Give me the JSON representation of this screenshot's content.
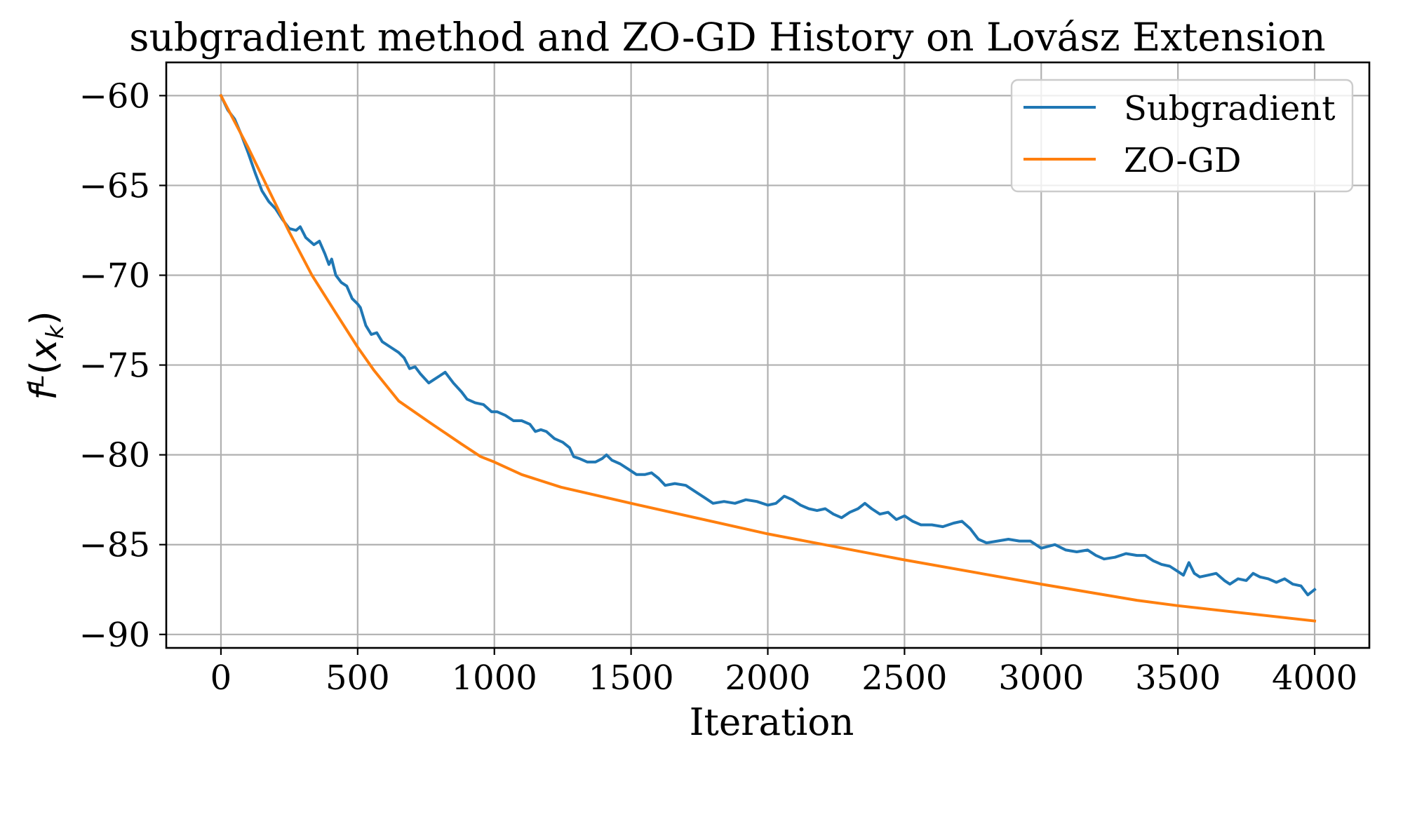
{
  "chart_data": {
    "type": "line",
    "title": "subgradient method and ZO-GD History on Lovász Extension",
    "xlabel": "Iteration",
    "ylabel": {
      "base": "f",
      "superscript": "L",
      "arg_open": "(",
      "arg_var": "x",
      "arg_subscript": "k",
      "arg_close": ")"
    },
    "xlim": [
      -200,
      4200
    ],
    "ylim": [
      -90.75,
      -58.15
    ],
    "xticks": [
      0,
      500,
      1000,
      1500,
      2000,
      2500,
      3000,
      3500,
      4000
    ],
    "xtick_labels": [
      "0",
      "500",
      "1000",
      "1500",
      "2000",
      "2500",
      "3000",
      "3500",
      "4000"
    ],
    "yticks": [
      -60,
      -65,
      -70,
      -75,
      -80,
      -85,
      -90
    ],
    "ytick_labels": [
      "−60",
      "−65",
      "−70",
      "−75",
      "−80",
      "−85",
      "−90"
    ],
    "grid": true,
    "legend": {
      "placement": "top-right"
    },
    "series": [
      {
        "name": "Subgradient",
        "color": "#1f77b4",
        "x": [
          0,
          25,
          50,
          75,
          100,
          125,
          150,
          175,
          200,
          225,
          250,
          275,
          290,
          310,
          340,
          360,
          380,
          395,
          405,
          420,
          440,
          460,
          480,
          500,
          510,
          530,
          550,
          570,
          590,
          620,
          650,
          670,
          690,
          710,
          730,
          760,
          780,
          800,
          820,
          850,
          880,
          900,
          930,
          960,
          990,
          1010,
          1040,
          1070,
          1100,
          1130,
          1150,
          1170,
          1190,
          1220,
          1250,
          1275,
          1290,
          1310,
          1340,
          1370,
          1395,
          1410,
          1430,
          1460,
          1490,
          1520,
          1550,
          1575,
          1600,
          1625,
          1660,
          1700,
          1740,
          1770,
          1800,
          1840,
          1880,
          1920,
          1960,
          2000,
          2030,
          2060,
          2090,
          2120,
          2150,
          2180,
          2210,
          2240,
          2270,
          2300,
          2330,
          2355,
          2380,
          2410,
          2440,
          2470,
          2500,
          2530,
          2560,
          2600,
          2640,
          2680,
          2710,
          2740,
          2770,
          2800,
          2840,
          2880,
          2920,
          2960,
          3000,
          3050,
          3090,
          3130,
          3170,
          3200,
          3230,
          3270,
          3310,
          3350,
          3380,
          3410,
          3440,
          3470,
          3500,
          3520,
          3540,
          3560,
          3580,
          3610,
          3640,
          3670,
          3690,
          3720,
          3750,
          3775,
          3800,
          3830,
          3860,
          3890,
          3920,
          3950,
          3975,
          4000
        ],
        "y": [
          -60,
          -60.8,
          -61.3,
          -62.2,
          -63.2,
          -64.3,
          -65.3,
          -65.9,
          -66.3,
          -66.9,
          -67.4,
          -67.5,
          -67.3,
          -67.9,
          -68.3,
          -68.1,
          -68.8,
          -69.4,
          -69.1,
          -70.0,
          -70.4,
          -70.6,
          -71.3,
          -71.6,
          -71.8,
          -72.8,
          -73.3,
          -73.2,
          -73.7,
          -74.0,
          -74.3,
          -74.6,
          -75.2,
          -75.1,
          -75.5,
          -76.0,
          -75.8,
          -75.6,
          -75.4,
          -76.0,
          -76.5,
          -76.9,
          -77.1,
          -77.2,
          -77.6,
          -77.6,
          -77.8,
          -78.1,
          -78.1,
          -78.3,
          -78.7,
          -78.6,
          -78.7,
          -79.1,
          -79.3,
          -79.6,
          -80.1,
          -80.2,
          -80.4,
          -80.4,
          -80.2,
          -80.0,
          -80.3,
          -80.5,
          -80.8,
          -81.1,
          -81.1,
          -81.0,
          -81.3,
          -81.7,
          -81.6,
          -81.7,
          -82.1,
          -82.4,
          -82.7,
          -82.6,
          -82.7,
          -82.5,
          -82.6,
          -82.8,
          -82.7,
          -82.3,
          -82.5,
          -82.8,
          -83.0,
          -83.1,
          -83.0,
          -83.3,
          -83.5,
          -83.2,
          -83.0,
          -82.7,
          -83.0,
          -83.3,
          -83.2,
          -83.6,
          -83.4,
          -83.7,
          -83.9,
          -83.9,
          -84.0,
          -83.8,
          -83.7,
          -84.1,
          -84.7,
          -84.9,
          -84.8,
          -84.7,
          -84.8,
          -84.8,
          -85.2,
          -85.0,
          -85.3,
          -85.4,
          -85.3,
          -85.6,
          -85.8,
          -85.7,
          -85.5,
          -85.6,
          -85.6,
          -85.9,
          -86.1,
          -86.2,
          -86.5,
          -86.7,
          -86.0,
          -86.6,
          -86.8,
          -86.7,
          -86.6,
          -87.0,
          -87.2,
          -86.9,
          -87.0,
          -86.6,
          -86.8,
          -86.9,
          -87.1,
          -86.9,
          -87.2,
          -87.3,
          -87.8,
          -87.5
        ]
      },
      {
        "name": "ZO-GD",
        "color": "#ff7f0e",
        "x": [
          0,
          100,
          167,
          250,
          333,
          420,
          500,
          560,
          650,
          764,
          880,
          950,
          1000,
          1100,
          1244,
          1500,
          2000,
          2500,
          3000,
          3350,
          3500,
          4000
        ],
        "y": [
          -60,
          -62.9,
          -65,
          -67.6,
          -70,
          -72.1,
          -74,
          -75.3,
          -77,
          -78.2,
          -79.4,
          -80.1,
          -80.4,
          -81.1,
          -81.8,
          -82.7,
          -84.4,
          -85.85,
          -87.2,
          -88.1,
          -88.4,
          -89.25
        ]
      }
    ]
  }
}
